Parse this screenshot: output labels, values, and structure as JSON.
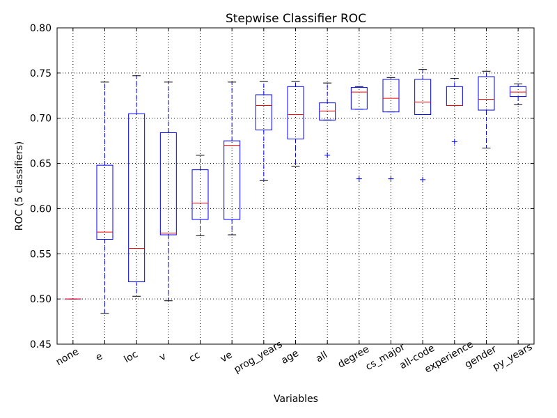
{
  "chart_data": {
    "type": "box",
    "title": "Stepwise Classifier ROC",
    "x_label": "Variables",
    "y_label": "ROC (5 classifiers)",
    "categories": [
      "none",
      "e",
      "loc",
      "v",
      "cc",
      "ve",
      "prog_years",
      "age",
      "all",
      "degree",
      "cs_major",
      "all-code",
      "experience",
      "gender",
      "py_years"
    ],
    "box_color": "#0000ff",
    "median_color": "#ff0000",
    "cap_color": "#000000",
    "flier_color": "#0000ff",
    "boxes": [
      {
        "whislo": 0.5,
        "q1": 0.5,
        "med": 0.5,
        "q3": 0.5,
        "whishi": 0.5,
        "fliers": []
      },
      {
        "whislo": 0.484,
        "q1": 0.566,
        "med": 0.574,
        "q3": 0.648,
        "whishi": 0.74,
        "fliers": []
      },
      {
        "whislo": 0.503,
        "q1": 0.519,
        "med": 0.556,
        "q3": 0.705,
        "whishi": 0.747,
        "fliers": []
      },
      {
        "whislo": 0.498,
        "q1": 0.571,
        "med": 0.573,
        "q3": 0.684,
        "whishi": 0.74,
        "fliers": []
      },
      {
        "whislo": 0.57,
        "q1": 0.588,
        "med": 0.606,
        "q3": 0.643,
        "whishi": 0.659,
        "fliers": []
      },
      {
        "whislo": 0.571,
        "q1": 0.588,
        "med": 0.67,
        "q3": 0.675,
        "whishi": 0.74,
        "fliers": []
      },
      {
        "whislo": 0.631,
        "q1": 0.687,
        "med": 0.714,
        "q3": 0.726,
        "whishi": 0.741,
        "fliers": []
      },
      {
        "whislo": 0.647,
        "q1": 0.677,
        "med": 0.704,
        "q3": 0.735,
        "whishi": 0.741,
        "fliers": []
      },
      {
        "whislo": 0.698,
        "q1": 0.698,
        "med": 0.708,
        "q3": 0.717,
        "whishi": 0.739,
        "fliers": [
          0.659
        ]
      },
      {
        "whislo": 0.71,
        "q1": 0.71,
        "med": 0.729,
        "q3": 0.734,
        "whishi": 0.735,
        "fliers": [
          0.633
        ]
      },
      {
        "whislo": 0.707,
        "q1": 0.707,
        "med": 0.722,
        "q3": 0.743,
        "whishi": 0.745,
        "fliers": [
          0.633
        ]
      },
      {
        "whislo": 0.704,
        "q1": 0.704,
        "med": 0.718,
        "q3": 0.743,
        "whishi": 0.754,
        "fliers": [
          0.632
        ]
      },
      {
        "whislo": 0.714,
        "q1": 0.714,
        "med": 0.714,
        "q3": 0.735,
        "whishi": 0.744,
        "fliers": [
          0.674
        ]
      },
      {
        "whislo": 0.667,
        "q1": 0.709,
        "med": 0.721,
        "q3": 0.746,
        "whishi": 0.752,
        "fliers": []
      },
      {
        "whislo": 0.715,
        "q1": 0.724,
        "med": 0.729,
        "q3": 0.735,
        "whishi": 0.738,
        "fliers": []
      }
    ],
    "ylim": [
      0.45,
      0.8
    ],
    "yticks": [
      0.45,
      {
        "value": 0.5,
        "label": "0.50"
      },
      0.55,
      {
        "value": 0.6,
        "label": "0.60"
      },
      0.65,
      {
        "value": 0.7,
        "label": "0.70"
      },
      0.75,
      {
        "value": 0.8,
        "label": "0.80"
      }
    ],
    "grid": true
  }
}
